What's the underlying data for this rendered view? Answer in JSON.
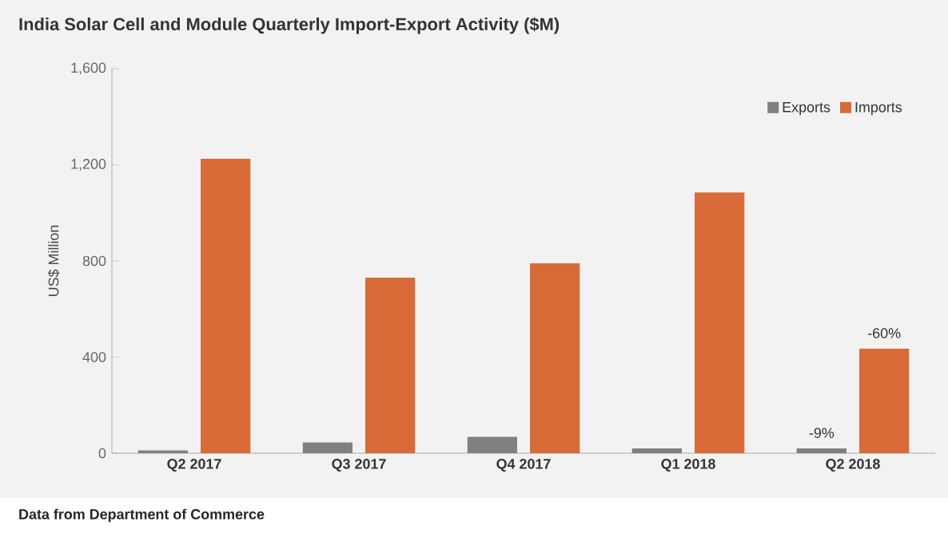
{
  "chart_data": {
    "type": "bar",
    "title": "India Solar Cell and Module Quarterly Import-Export Activity ($M)",
    "ylabel": "US$ Million",
    "categories": [
      "Q2 2017",
      "Q3 2017",
      "Q4 2017",
      "Q1 2018",
      "Q2 2018"
    ],
    "series": [
      {
        "name": "Exports",
        "color": "#808080",
        "values": [
          12,
          45,
          68,
          20,
          20
        ]
      },
      {
        "name": "Imports",
        "color": "#d96b38",
        "values": [
          1225,
          730,
          790,
          1085,
          435
        ]
      }
    ],
    "ylim": [
      0,
      1600
    ],
    "yticks": [
      0,
      {
        "value": 400,
        "label": "400"
      },
      {
        "value": 800,
        "label": "800"
      },
      {
        "value": 1200,
        "label": "1,200"
      },
      {
        "value": 1600,
        "label": "1,600"
      }
    ],
    "legend": "top right",
    "grid": false,
    "annotations": [
      {
        "text": "-9%",
        "x": "Q2 2018",
        "y": 20
      },
      {
        "text": "-60%",
        "x": "Q2 2018",
        "y": 435
      },
      "Data from Department of Commerce"
    ]
  }
}
